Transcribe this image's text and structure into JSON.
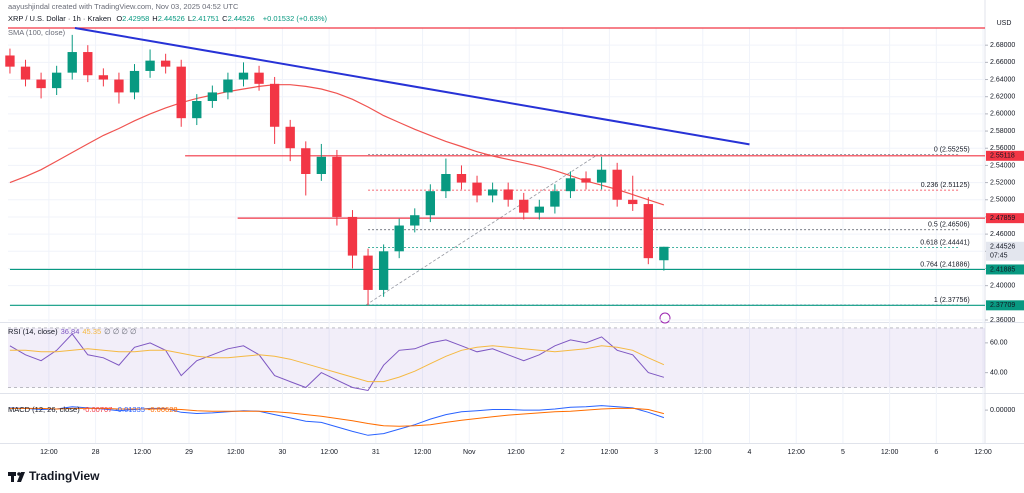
{
  "chart_data": [
    {
      "type": "candlestick",
      "credit": "aayushjindal created with TradingView.com, Nov 03, 2025 04:52 UTC",
      "symbol": "XRP / U.S. Dollar · 1h · Kraken",
      "ohlc_prefixes": [
        "O",
        "H",
        "L",
        "C"
      ],
      "change": "+0.01532 (+0.63%)",
      "currency": "USD",
      "countdown": "07:45",
      "up_color": "#089981",
      "down_color": "#f23645",
      "x": [
        0,
        4,
        8,
        12,
        16,
        20,
        24,
        28,
        32,
        36,
        40,
        44,
        48,
        52,
        56,
        60,
        64,
        68,
        72,
        76,
        80,
        84,
        88,
        92,
        96,
        100,
        104,
        108,
        112,
        116,
        120,
        124,
        128,
        132,
        136,
        140,
        144,
        148,
        152,
        156,
        160,
        164,
        168
      ],
      "open": [
        2.668,
        2.655,
        2.64,
        2.63,
        2.648,
        2.672,
        2.645,
        2.64,
        2.625,
        2.65,
        2.662,
        2.655,
        2.595,
        2.615,
        2.625,
        2.64,
        2.648,
        2.635,
        2.585,
        2.56,
        2.53,
        2.55,
        2.48,
        2.435,
        2.395,
        2.44,
        2.47,
        2.482,
        2.51,
        2.53,
        2.52,
        2.505,
        2.512,
        2.5,
        2.485,
        2.492,
        2.51,
        2.525,
        2.52,
        2.535,
        2.5,
        2.495,
        2.42958
      ],
      "high": [
        2.676,
        2.663,
        2.648,
        2.656,
        2.692,
        2.68,
        2.653,
        2.648,
        2.658,
        2.675,
        2.67,
        2.663,
        2.623,
        2.633,
        2.648,
        2.66,
        2.656,
        2.643,
        2.593,
        2.568,
        2.565,
        2.558,
        2.488,
        2.443,
        2.448,
        2.478,
        2.49,
        2.518,
        2.548,
        2.54,
        2.528,
        2.52,
        2.52,
        2.508,
        2.5,
        2.518,
        2.533,
        2.533,
        2.55,
        2.543,
        2.528,
        2.503,
        2.44526
      ],
      "low": [
        2.647,
        2.632,
        2.618,
        2.622,
        2.64,
        2.637,
        2.632,
        2.612,
        2.617,
        2.642,
        2.647,
        2.585,
        2.587,
        2.607,
        2.617,
        2.632,
        2.627,
        2.565,
        2.545,
        2.505,
        2.522,
        2.47,
        2.42,
        2.37709,
        2.387,
        2.432,
        2.462,
        2.474,
        2.502,
        2.512,
        2.497,
        2.497,
        2.492,
        2.477,
        2.477,
        2.484,
        2.502,
        2.512,
        2.512,
        2.492,
        2.487,
        2.425,
        2.41751
      ],
      "close": [
        2.655,
        2.64,
        2.63,
        2.648,
        2.672,
        2.645,
        2.64,
        2.625,
        2.65,
        2.662,
        2.655,
        2.595,
        2.615,
        2.625,
        2.64,
        2.648,
        2.635,
        2.585,
        2.56,
        2.53,
        2.55,
        2.48,
        2.435,
        2.395,
        2.44,
        2.47,
        2.482,
        2.51,
        2.53,
        2.52,
        2.505,
        2.512,
        2.5,
        2.485,
        2.492,
        2.51,
        2.525,
        2.52,
        2.535,
        2.5,
        2.495,
        2.432,
        2.44526
      ],
      "overlays": [
        {
          "name": "SMA (100, close)",
          "color": "#f05350",
          "values": [
            2.52,
            2.527,
            2.535,
            2.545,
            2.555,
            2.565,
            2.575,
            2.583,
            2.592,
            2.6,
            2.607,
            2.613,
            2.618,
            2.622,
            2.626,
            2.629,
            2.632,
            2.634,
            2.634,
            2.632,
            2.629,
            2.624,
            2.617,
            2.608,
            2.598,
            2.59,
            2.582,
            2.575,
            2.568,
            2.562,
            2.556,
            2.551,
            2.547,
            2.543,
            2.539,
            2.534,
            2.528,
            2.522,
            2.517,
            2.512,
            2.506,
            2.5,
            2.494
          ]
        }
      ],
      "xlim": [
        -0.5,
        250.5
      ],
      "xticks": [
        {
          "value": 10,
          "label": "12:00"
        },
        {
          "value": 22,
          "label": "28"
        },
        {
          "value": 34,
          "label": "12:00"
        },
        {
          "value": 46,
          "label": "29"
        },
        {
          "value": 58,
          "label": "12:00"
        },
        {
          "value": 70,
          "label": "30"
        },
        {
          "value": 82,
          "label": "12:00"
        },
        {
          "value": 94,
          "label": "31"
        },
        {
          "value": 106,
          "label": "12:00"
        },
        {
          "value": 118,
          "label": "Nov"
        },
        {
          "value": 130,
          "label": "12:00"
        },
        {
          "value": 142,
          "label": "2"
        },
        {
          "value": 154,
          "label": "12:00"
        },
        {
          "value": 166,
          "label": "3"
        },
        {
          "value": 178,
          "label": "12:00"
        },
        {
          "value": 190,
          "label": "4"
        },
        {
          "value": 202,
          "label": "12:00"
        },
        {
          "value": 214,
          "label": "5"
        },
        {
          "value": 226,
          "label": "12:00"
        },
        {
          "value": 238,
          "label": "6"
        },
        {
          "value": 250,
          "label": "12:00"
        }
      ],
      "ylim": [
        2.36,
        2.7
      ],
      "yticks": [
        {
          "value": 2.68,
          "label": "2.68000"
        },
        {
          "value": 2.66,
          "label": "2.66000"
        },
        {
          "value": 2.64,
          "label": "2.64000"
        },
        {
          "value": 2.62,
          "label": "2.62000"
        },
        {
          "value": 2.6,
          "label": "2.60000"
        },
        {
          "value": 2.58,
          "label": "2.58000"
        },
        {
          "value": 2.56,
          "label": "2.56000"
        },
        {
          "value": 2.54,
          "label": "2.54000"
        },
        {
          "value": 2.52,
          "label": "2.52000"
        },
        {
          "value": 2.5,
          "label": "2.50000"
        },
        {
          "value": 2.48,
          "label": "2.48000"
        },
        {
          "value": 2.46,
          "label": "2.46000"
        },
        {
          "value": 2.44,
          "label": "2.44000"
        },
        {
          "value": 2.42,
          "label": "2.42000"
        },
        {
          "value": 2.4,
          "label": "2.40000"
        },
        {
          "value": 2.36,
          "label": "2.36000"
        }
      ],
      "grid": true,
      "ceiling": {
        "price": 2.7,
        "color": "#f23645"
      },
      "levels": [
        {
          "price": 2.55118,
          "color": "#f23645",
          "start": 45
        },
        {
          "price": 2.47859,
          "color": "#f23645",
          "start": 58.5
        },
        {
          "price": 2.41885,
          "color": "#089981",
          "start": 0
        },
        {
          "price": 2.37709,
          "color": "#089981",
          "start": 0
        }
      ],
      "fib": [
        {
          "label": "0 (2.55255)",
          "price": 2.55255,
          "color": "#787b86"
        },
        {
          "label": "0.236 (2.51125)",
          "price": 2.51125,
          "color": "#f23645"
        },
        {
          "label": "0.5 (2.46506)",
          "price": 2.46506,
          "color": "#4c525e"
        },
        {
          "label": "0.618 (2.44441)",
          "price": 2.44441,
          "color": "#089981"
        },
        {
          "label": "0.764 (2.41886)",
          "price": 2.41886,
          "color": "#b22833"
        },
        {
          "label": "1 (2.37756)",
          "price": 2.37756,
          "color": "#5b7ab8"
        }
      ],
      "fib_x": [
        92,
        244
      ],
      "fib_anchor": {
        "x": [
          91.5,
          151
        ],
        "y": [
          2.37756,
          2.55255
        ],
        "color": "#9598a1"
      },
      "trendline": {
        "x": [
          16.7,
          190
        ],
        "y": [
          2.7,
          2.5645
        ],
        "color": "#2732d6"
      }
    },
    {
      "type": "line",
      "title": "RSI (14, close)",
      "na_marks": "∅ ∅ ∅ ∅",
      "series": [
        {
          "color": "#7e57c2",
          "values": [
            58,
            52,
            48,
            55,
            66,
            52,
            50,
            45,
            57,
            60,
            55,
            38,
            48,
            52,
            56,
            58,
            52,
            38,
            34,
            30,
            40,
            35,
            30,
            28,
            45,
            55,
            56,
            60,
            62,
            58,
            54,
            56,
            52,
            48,
            52,
            58,
            62,
            60,
            64,
            55,
            52,
            40,
            36.84
          ]
        },
        {
          "color": "#f5b942",
          "values": [
            55,
            55,
            54,
            54,
            55,
            56,
            55,
            54,
            54,
            55,
            55,
            53,
            51,
            50,
            50,
            51,
            52,
            51,
            49,
            46,
            43,
            40,
            37,
            34,
            34,
            37,
            41,
            46,
            51,
            55,
            57,
            58,
            57,
            56,
            55,
            54,
            55,
            56,
            58,
            57,
            55,
            50,
            45.35
          ]
        }
      ],
      "band": [
        30,
        70
      ],
      "band_color": "#7e57c2",
      "ylim": [
        27,
        72
      ],
      "yticks": [
        {
          "value": 60,
          "label": "60.00"
        },
        {
          "value": 40,
          "label": "40.00"
        }
      ]
    },
    {
      "type": "line",
      "title": "MACD (12, 26, close)",
      "histogram_label": "-0.00707",
      "series": [
        {
          "color": "#2962ff",
          "values": [
            0.004,
            0.003,
            0.001,
            0.002,
            0.006,
            0.004,
            0.002,
            -0.001,
            0.001,
            0.003,
            0.003,
            -0.004,
            -0.006,
            -0.005,
            -0.003,
            -0.001,
            -0.002,
            -0.008,
            -0.014,
            -0.02,
            -0.022,
            -0.03,
            -0.038,
            -0.045,
            -0.042,
            -0.034,
            -0.026,
            -0.016,
            -0.008,
            -0.003,
            -0.001,
            0.001,
            0.001,
            0.0,
            0.0,
            0.002,
            0.005,
            0.006,
            0.008,
            0.006,
            0.004,
            -0.004,
            -0.01335
          ]
        },
        {
          "color": "#ff6d00",
          "values": [
            0.003,
            0.003,
            0.003,
            0.002,
            0.003,
            0.003,
            0.003,
            0.002,
            0.002,
            0.002,
            0.002,
            0.001,
            -0.001,
            -0.002,
            -0.002,
            -0.002,
            -0.002,
            -0.003,
            -0.005,
            -0.008,
            -0.011,
            -0.015,
            -0.019,
            -0.024,
            -0.028,
            -0.029,
            -0.028,
            -0.026,
            -0.022,
            -0.018,
            -0.015,
            -0.012,
            -0.009,
            -0.007,
            -0.005,
            -0.003,
            -0.002,
            0.0,
            0.002,
            0.003,
            0.003,
            0.001,
            -0.00628
          ]
        }
      ],
      "ylim": [
        -0.057,
        0.027
      ],
      "yticks": [
        {
          "value": 0,
          "label": "0.00000"
        }
      ]
    }
  ],
  "branding": "TradingView"
}
